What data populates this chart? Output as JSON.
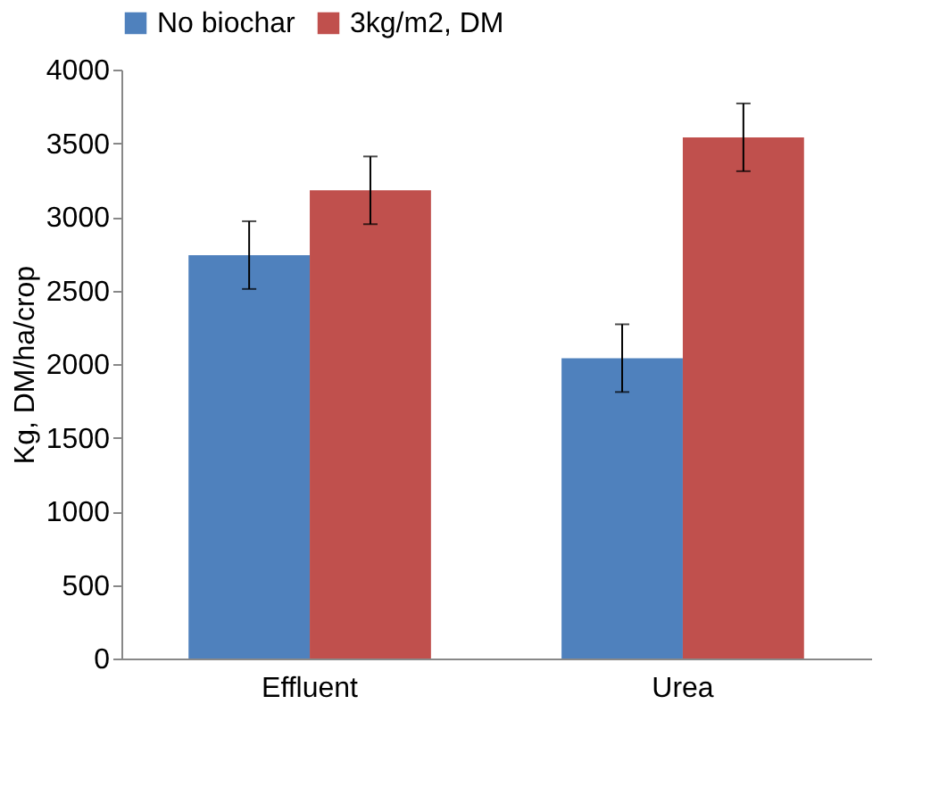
{
  "chart_data": {
    "type": "bar",
    "ylabel": "Kg, DM/ha/crop",
    "categories": [
      "Effluent",
      "Urea"
    ],
    "series": [
      {
        "name": "No biochar",
        "color": "#4f81bd",
        "values": [
          2740,
          2040
        ],
        "errors": [
          230,
          230
        ]
      },
      {
        "name": "3kg/m2, DM",
        "color": "#c0504d",
        "values": [
          3180,
          3540
        ],
        "errors": [
          230,
          230
        ]
      }
    ],
    "ylim": [
      0,
      4000
    ],
    "yticks": [
      0,
      500,
      1000,
      1500,
      2000,
      2500,
      3000,
      3500,
      4000
    ],
    "grid": false,
    "legend": "top"
  }
}
